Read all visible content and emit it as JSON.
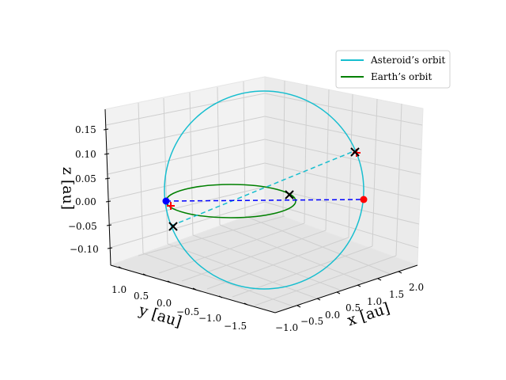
{
  "chart_data": {
    "type": "3d-line",
    "axes": {
      "x": {
        "label": "x [au]",
        "ticks": [
          "−1.0",
          "−0.5",
          "0.0",
          "0.5",
          "1.0",
          "1.5",
          "2.0"
        ]
      },
      "y": {
        "label": "y [au]",
        "ticks": [
          "1.0",
          "0.5",
          "0.0",
          "−0.5",
          "−1.0",
          "−1.5"
        ]
      },
      "z": {
        "label": "z [au]",
        "ticks": [
          "0.15",
          "0.10",
          "0.05",
          "0.00",
          "−0.05",
          "−0.10"
        ]
      }
    },
    "grid": true,
    "legend": {
      "placement": "top-right",
      "entries": [
        {
          "label": "Asteroid’s orbit",
          "color": "#17becf"
        },
        {
          "label": "Earth’s orbit",
          "color": "#008000"
        }
      ]
    },
    "series": [
      {
        "name": "Asteroid’s orbit",
        "color": "#17becf",
        "shape": "ellipse",
        "center_x_au": 0.45,
        "semi_axis_au": 1.5,
        "z_amplitude_au": 0.17
      },
      {
        "name": "Earth’s orbit",
        "color": "#008000",
        "shape": "circle",
        "radius_au": 1.0,
        "z_au": 0.0
      }
    ],
    "markers": [
      {
        "role": "blue point",
        "color": "#0000ff",
        "shape": "circle"
      },
      {
        "role": "red point",
        "color": "#ff0000",
        "shape": "circle"
      },
      {
        "role": "black cross (asteroid line, upper)",
        "color": "#000000",
        "shape": "x"
      },
      {
        "role": "black cross (asteroid line, lower)",
        "color": "#000000",
        "shape": "x"
      },
      {
        "role": "black cross (on Earth's orbit)",
        "color": "#000000",
        "shape": "x"
      },
      {
        "role": "red cross",
        "color": "#ff0000",
        "shape": "+"
      }
    ],
    "dashed_lines": [
      {
        "color": "#17becf",
        "style": "dashed"
      },
      {
        "color": "#0000ff",
        "style": "dashed"
      }
    ]
  }
}
